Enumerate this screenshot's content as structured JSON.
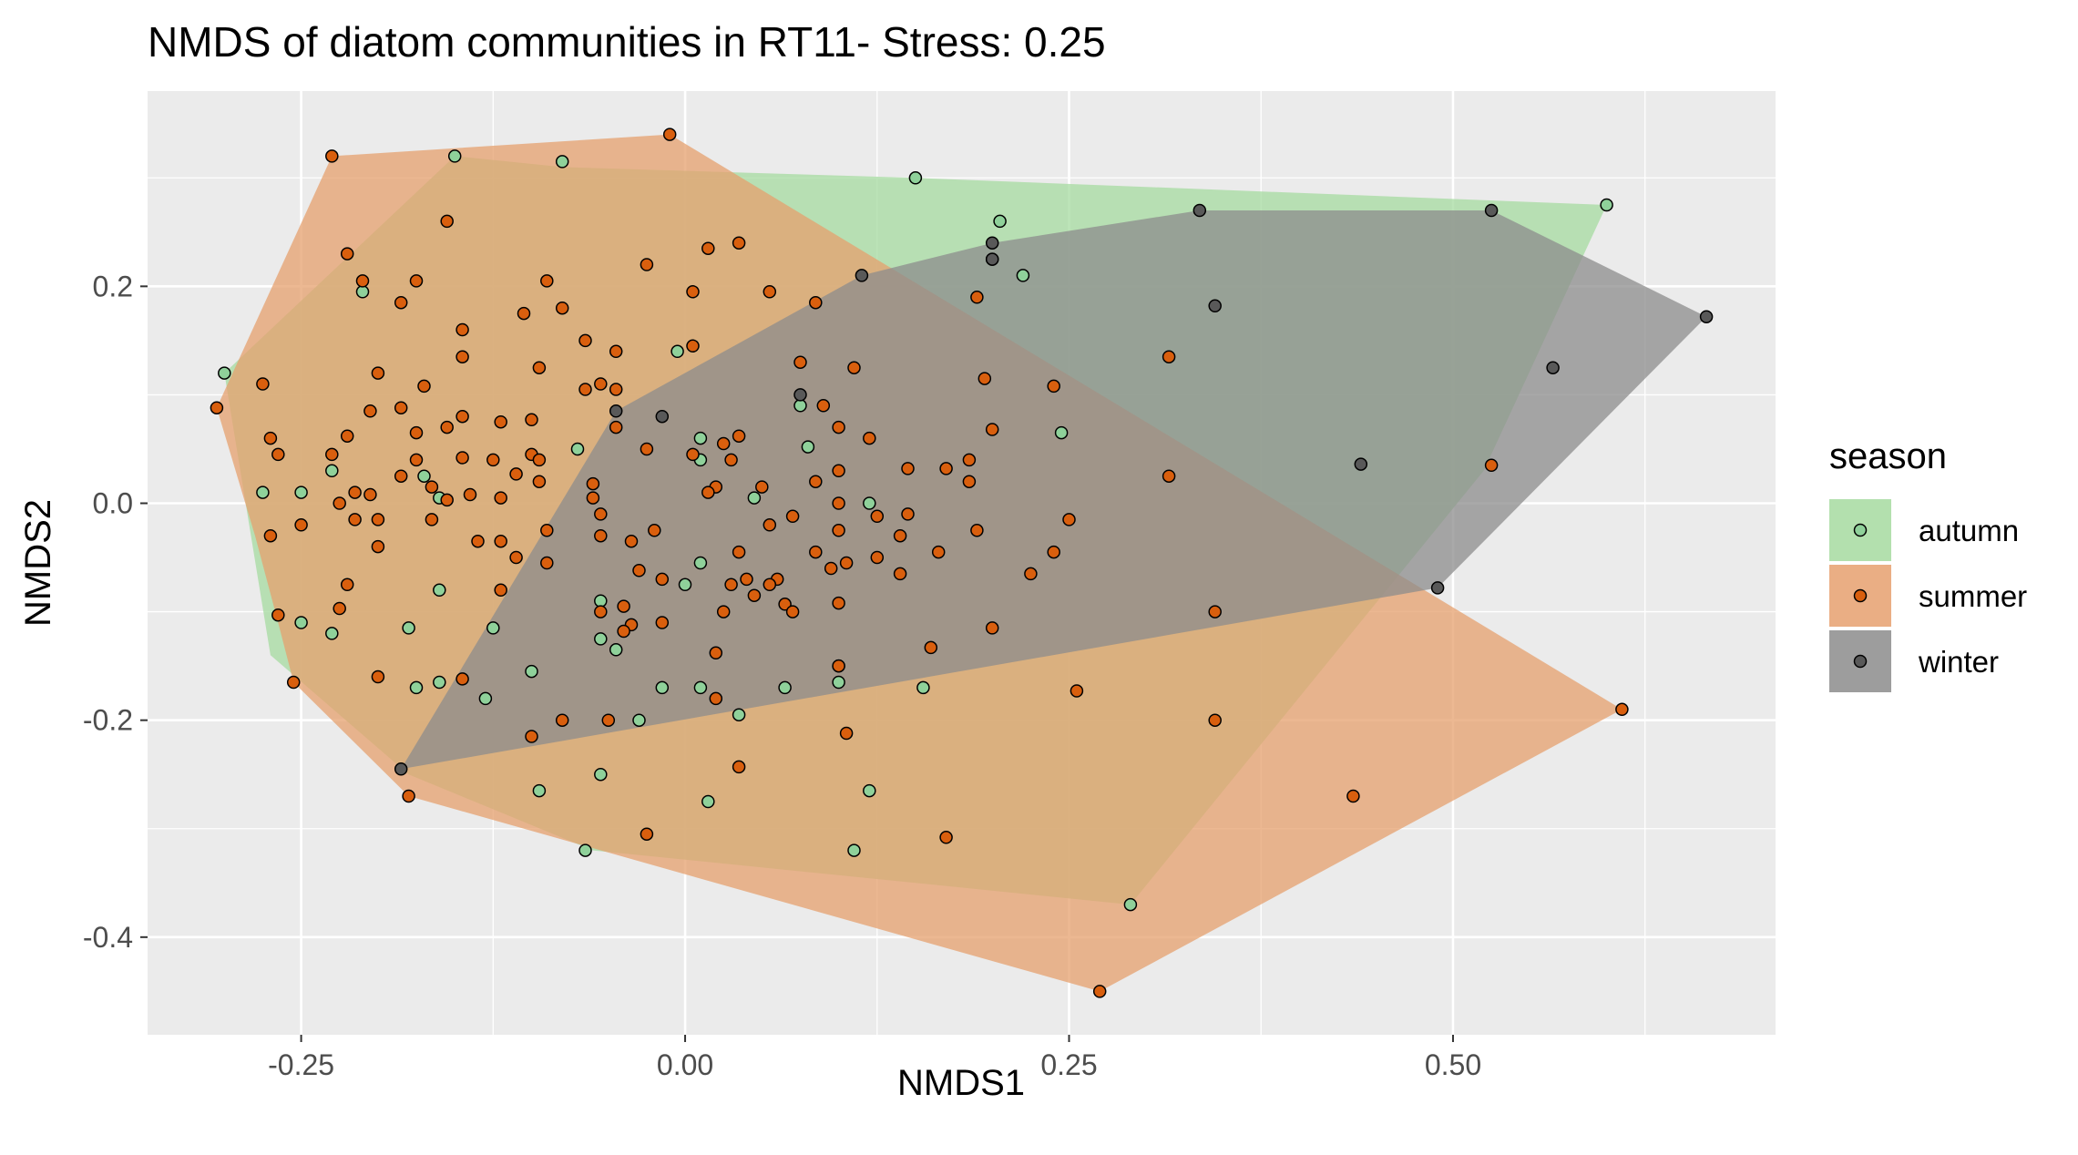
{
  "chart_data": {
    "type": "scatter",
    "title": "NMDS of diatom communities in RT11- Stress: 0.25",
    "xlabel": "NMDS1",
    "ylabel": "NMDS2",
    "xlim": [
      -0.35,
      0.71
    ],
    "ylim": [
      -0.49,
      0.38
    ],
    "x_ticks": [
      -0.25,
      0.0,
      0.25,
      0.5
    ],
    "x_tick_labels": [
      "-0.25",
      "0.00",
      "0.25",
      "0.50"
    ],
    "y_ticks": [
      0.2,
      0.0,
      -0.2,
      -0.4
    ],
    "y_tick_labels": [
      "0.2",
      "0.0",
      "-0.2",
      "-0.4"
    ],
    "grid": true,
    "background": "#ebebeb",
    "legend": {
      "title": "season",
      "placement": "right",
      "entries": [
        "autumn",
        "summer",
        "winter"
      ]
    },
    "series": [
      {
        "name": "autumn",
        "point_color": "#8fd19a",
        "hull_color": "#a6dba0",
        "hull": [
          [
            -0.3,
            0.12
          ],
          [
            -0.15,
            0.32
          ],
          [
            -0.08,
            0.31
          ],
          [
            0.15,
            0.3
          ],
          [
            0.6,
            0.275
          ],
          [
            0.52,
            0.03
          ],
          [
            0.29,
            -0.37
          ],
          [
            -0.06,
            -0.32
          ],
          [
            -0.18,
            -0.25
          ],
          [
            -0.27,
            -0.14
          ]
        ],
        "points": [
          [
            -0.3,
            0.12
          ],
          [
            -0.15,
            0.32
          ],
          [
            -0.08,
            0.315
          ],
          [
            0.15,
            0.3
          ],
          [
            0.6,
            0.275
          ],
          [
            0.205,
            0.26
          ],
          [
            0.2,
            0.225
          ],
          [
            0.22,
            0.21
          ],
          [
            -0.21,
            0.195
          ],
          [
            -0.005,
            0.14
          ],
          [
            0.075,
            0.09
          ],
          [
            0.245,
            0.065
          ],
          [
            0.01,
            0.06
          ],
          [
            0.08,
            0.052
          ],
          [
            -0.07,
            0.05
          ],
          [
            0.01,
            0.04
          ],
          [
            -0.23,
            0.03
          ],
          [
            -0.17,
            0.025
          ],
          [
            -0.25,
            0.01
          ],
          [
            -0.275,
            0.01
          ],
          [
            -0.16,
            0.005
          ],
          [
            0.045,
            0.005
          ],
          [
            0.12,
            0.0
          ],
          [
            0.01,
            -0.055
          ],
          [
            0.0,
            -0.075
          ],
          [
            -0.16,
            -0.08
          ],
          [
            -0.055,
            -0.09
          ],
          [
            -0.25,
            -0.11
          ],
          [
            -0.23,
            -0.12
          ],
          [
            -0.18,
            -0.115
          ],
          [
            -0.125,
            -0.115
          ],
          [
            -0.055,
            -0.125
          ],
          [
            -0.045,
            -0.135
          ],
          [
            0.1,
            -0.15
          ],
          [
            -0.1,
            -0.155
          ],
          [
            0.1,
            -0.165
          ],
          [
            0.01,
            -0.17
          ],
          [
            -0.16,
            -0.165
          ],
          [
            0.065,
            -0.17
          ],
          [
            -0.015,
            -0.17
          ],
          [
            0.155,
            -0.17
          ],
          [
            -0.175,
            -0.17
          ],
          [
            -0.13,
            -0.18
          ],
          [
            0.035,
            -0.195
          ],
          [
            -0.03,
            -0.2
          ],
          [
            -0.055,
            -0.25
          ],
          [
            -0.095,
            -0.265
          ],
          [
            0.12,
            -0.265
          ],
          [
            0.015,
            -0.275
          ],
          [
            -0.065,
            -0.32
          ],
          [
            0.11,
            -0.32
          ],
          [
            0.29,
            -0.37
          ]
        ]
      },
      {
        "name": "summer",
        "point_color": "#d95f0e",
        "hull_color": "#e6a06e",
        "hull": [
          [
            -0.305,
            0.088
          ],
          [
            -0.23,
            0.32
          ],
          [
            -0.01,
            0.34
          ],
          [
            0.61,
            -0.19
          ],
          [
            0.27,
            -0.45
          ],
          [
            -0.18,
            -0.27
          ],
          [
            -0.255,
            -0.165
          ],
          [
            -0.265,
            -0.11
          ],
          [
            -0.28,
            -0.03
          ]
        ],
        "points": [
          [
            -0.01,
            0.34
          ],
          [
            -0.23,
            0.32
          ],
          [
            -0.155,
            0.26
          ],
          [
            0.015,
            0.235
          ],
          [
            0.035,
            0.24
          ],
          [
            -0.22,
            0.23
          ],
          [
            -0.025,
            0.22
          ],
          [
            -0.175,
            0.205
          ],
          [
            -0.09,
            0.205
          ],
          [
            -0.21,
            0.205
          ],
          [
            0.005,
            0.195
          ],
          [
            0.055,
            0.195
          ],
          [
            0.19,
            0.19
          ],
          [
            -0.185,
            0.185
          ],
          [
            0.085,
            0.185
          ],
          [
            -0.105,
            0.175
          ],
          [
            -0.08,
            0.18
          ],
          [
            -0.145,
            0.16
          ],
          [
            -0.065,
            0.15
          ],
          [
            0.005,
            0.145
          ],
          [
            -0.045,
            0.14
          ],
          [
            -0.145,
            0.135
          ],
          [
            0.315,
            0.135
          ],
          [
            0.075,
            0.13
          ],
          [
            0.11,
            0.125
          ],
          [
            -0.095,
            0.125
          ],
          [
            -0.2,
            0.12
          ],
          [
            -0.275,
            0.11
          ],
          [
            0.195,
            0.115
          ],
          [
            -0.055,
            0.11
          ],
          [
            -0.045,
            0.105
          ],
          [
            -0.17,
            0.108
          ],
          [
            0.24,
            0.108
          ],
          [
            -0.065,
            0.105
          ],
          [
            0.09,
            0.09
          ],
          [
            -0.305,
            0.088
          ],
          [
            -0.185,
            0.088
          ],
          [
            -0.205,
            0.085
          ],
          [
            -0.145,
            0.08
          ],
          [
            -0.1,
            0.077
          ],
          [
            -0.12,
            0.075
          ],
          [
            -0.155,
            0.07
          ],
          [
            -0.045,
            0.07
          ],
          [
            0.1,
            0.07
          ],
          [
            0.2,
            0.068
          ],
          [
            -0.175,
            0.065
          ],
          [
            -0.27,
            0.06
          ],
          [
            -0.22,
            0.062
          ],
          [
            0.035,
            0.062
          ],
          [
            0.12,
            0.06
          ],
          [
            0.025,
            0.055
          ],
          [
            -0.025,
            0.05
          ],
          [
            0.005,
            0.045
          ],
          [
            -0.265,
            0.045
          ],
          [
            -0.23,
            0.045
          ],
          [
            -0.1,
            0.045
          ],
          [
            -0.095,
            0.04
          ],
          [
            -0.125,
            0.04
          ],
          [
            -0.145,
            0.042
          ],
          [
            -0.175,
            0.04
          ],
          [
            0.185,
            0.04
          ],
          [
            0.03,
            0.04
          ],
          [
            0.525,
            0.035
          ],
          [
            0.145,
            0.032
          ],
          [
            0.17,
            0.032
          ],
          [
            0.1,
            0.03
          ],
          [
            0.315,
            0.025
          ],
          [
            -0.185,
            0.025
          ],
          [
            -0.11,
            0.027
          ],
          [
            -0.095,
            0.02
          ],
          [
            0.085,
            0.02
          ],
          [
            0.185,
            0.02
          ],
          [
            -0.06,
            0.018
          ],
          [
            0.02,
            0.015
          ],
          [
            0.05,
            0.015
          ],
          [
            -0.165,
            0.015
          ],
          [
            -0.215,
            0.01
          ],
          [
            -0.06,
            0.005
          ],
          [
            -0.205,
            0.008
          ],
          [
            0.015,
            0.01
          ],
          [
            -0.14,
            0.008
          ],
          [
            -0.12,
            0.005
          ],
          [
            0.1,
            0.0
          ],
          [
            -0.155,
            0.003
          ],
          [
            -0.225,
            0.0
          ],
          [
            -0.27,
            -0.03
          ],
          [
            -0.25,
            -0.02
          ],
          [
            -0.215,
            -0.015
          ],
          [
            -0.2,
            -0.015
          ],
          [
            -0.165,
            -0.015
          ],
          [
            -0.055,
            -0.01
          ],
          [
            0.145,
            -0.01
          ],
          [
            0.07,
            -0.012
          ],
          [
            0.125,
            -0.012
          ],
          [
            0.25,
            -0.015
          ],
          [
            0.055,
            -0.02
          ],
          [
            0.1,
            -0.025
          ],
          [
            -0.02,
            -0.025
          ],
          [
            -0.09,
            -0.025
          ],
          [
            -0.055,
            -0.03
          ],
          [
            0.19,
            -0.025
          ],
          [
            0.14,
            -0.03
          ],
          [
            -0.035,
            -0.035
          ],
          [
            -0.2,
            -0.04
          ],
          [
            -0.135,
            -0.035
          ],
          [
            -0.12,
            -0.035
          ],
          [
            0.085,
            -0.045
          ],
          [
            0.035,
            -0.045
          ],
          [
            0.165,
            -0.045
          ],
          [
            0.24,
            -0.045
          ],
          [
            0.125,
            -0.05
          ],
          [
            0.105,
            -0.055
          ],
          [
            -0.09,
            -0.055
          ],
          [
            -0.11,
            -0.05
          ],
          [
            0.095,
            -0.06
          ],
          [
            0.14,
            -0.065
          ],
          [
            0.225,
            -0.065
          ],
          [
            0.04,
            -0.07
          ],
          [
            -0.03,
            -0.062
          ],
          [
            0.06,
            -0.07
          ],
          [
            -0.015,
            -0.07
          ],
          [
            -0.22,
            -0.075
          ],
          [
            0.03,
            -0.075
          ],
          [
            0.055,
            -0.075
          ],
          [
            -0.12,
            -0.08
          ],
          [
            0.045,
            -0.085
          ],
          [
            -0.04,
            -0.095
          ],
          [
            0.1,
            -0.092
          ],
          [
            -0.225,
            -0.097
          ],
          [
            0.065,
            -0.093
          ],
          [
            0.07,
            -0.1
          ],
          [
            -0.055,
            -0.1
          ],
          [
            0.345,
            -0.1
          ],
          [
            0.025,
            -0.1
          ],
          [
            -0.265,
            -0.103
          ],
          [
            -0.035,
            -0.112
          ],
          [
            -0.015,
            -0.11
          ],
          [
            0.2,
            -0.115
          ],
          [
            -0.04,
            -0.118
          ],
          [
            0.16,
            -0.133
          ],
          [
            0.02,
            -0.138
          ],
          [
            0.1,
            -0.15
          ],
          [
            -0.2,
            -0.16
          ],
          [
            -0.255,
            -0.165
          ],
          [
            -0.145,
            -0.162
          ],
          [
            0.255,
            -0.173
          ],
          [
            0.02,
            -0.18
          ],
          [
            -0.08,
            -0.2
          ],
          [
            0.345,
            -0.2
          ],
          [
            -0.05,
            -0.2
          ],
          [
            -0.1,
            -0.215
          ],
          [
            0.105,
            -0.212
          ],
          [
            0.035,
            -0.243
          ],
          [
            -0.18,
            -0.27
          ],
          [
            0.435,
            -0.27
          ],
          [
            -0.025,
            -0.305
          ],
          [
            0.17,
            -0.308
          ],
          [
            0.61,
            -0.19
          ],
          [
            0.27,
            -0.45
          ]
        ]
      },
      {
        "name": "winter",
        "point_color": "#595959",
        "hull_color": "#8c8c8c",
        "hull": [
          [
            -0.185,
            -0.245
          ],
          [
            -0.045,
            0.085
          ],
          [
            0.115,
            0.21
          ],
          [
            0.2,
            0.24
          ],
          [
            0.335,
            0.27
          ],
          [
            0.525,
            0.27
          ],
          [
            0.665,
            0.172
          ],
          [
            0.49,
            -0.078
          ]
        ],
        "points": [
          [
            0.335,
            0.27
          ],
          [
            0.525,
            0.27
          ],
          [
            0.2,
            0.24
          ],
          [
            0.2,
            0.225
          ],
          [
            0.115,
            0.21
          ],
          [
            0.345,
            0.182
          ],
          [
            0.665,
            0.172
          ],
          [
            0.565,
            0.125
          ],
          [
            0.075,
            0.1
          ],
          [
            -0.045,
            0.085
          ],
          [
            -0.015,
            0.08
          ],
          [
            0.44,
            0.036
          ],
          [
            0.49,
            -0.078
          ],
          [
            -0.185,
            -0.245
          ]
        ]
      }
    ]
  }
}
